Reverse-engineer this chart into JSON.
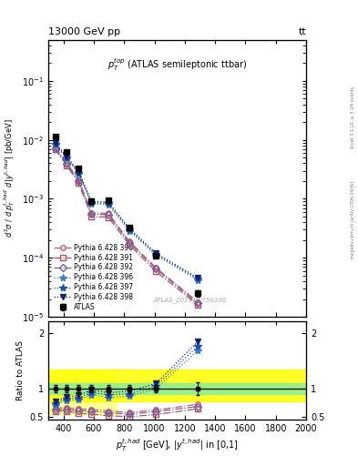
{
  "title_top": "13000 GeV pp",
  "title_right": "tt",
  "annotation": "$p_T^{top}$ (ATLAS semileptonic ttbar)",
  "watermark": "ATLAS_2019_I1750330",
  "right_label": "mcplots.cern.ch [arXiv:1306.3436]",
  "right_label2": "Rivet 3.1.10, ≥ 3.1M events",
  "ylabel_main": "$d^2\\sigma$ / $d\\,p_T^{t,had}$ $d\\,|y^{t,had}|$ [pb/GeV]",
  "ylabel_ratio": "Ratio to ATLAS",
  "xlabel": "$p_T^{t,had}$ [GeV], $|y^{t,had}|$ in [0,1]",
  "ylim_main": [
    1e-05,
    0.5
  ],
  "ylim_ratio": [
    0.45,
    2.2
  ],
  "xlim": [
    300,
    2000
  ],
  "atlas_x": [
    345,
    420,
    500,
    585,
    695,
    835,
    1010,
    1285
  ],
  "atlas_y": [
    0.0115,
    0.0062,
    0.0033,
    0.00092,
    0.00095,
    0.00033,
    0.00011,
    2.5e-05
  ],
  "atlas_yerr": [
    0.0008,
    0.0004,
    0.0002,
    6e-05,
    6e-05,
    2e-05,
    8e-06,
    3e-06
  ],
  "series": [
    {
      "label": "Pythia 6.428 390",
      "color": "#c06070",
      "linestyle": "-.",
      "marker": "o",
      "fillstyle": "none",
      "x": [
        345,
        420,
        500,
        585,
        695,
        835,
        1010,
        1285
      ],
      "y": [
        0.0075,
        0.0041,
        0.0021,
        0.00058,
        0.00057,
        0.00019,
        6.8e-05,
        1.8e-05
      ]
    },
    {
      "label": "Pythia 6.428 391",
      "color": "#b05060",
      "linestyle": "-.",
      "marker": "s",
      "fillstyle": "none",
      "x": [
        345,
        420,
        500,
        585,
        695,
        835,
        1010,
        1285
      ],
      "y": [
        0.0069,
        0.0037,
        0.00185,
        0.0005,
        0.00049,
        0.000165,
        5.9e-05,
        1.6e-05
      ]
    },
    {
      "label": "Pythia 6.428 392",
      "color": "#7060a0",
      "linestyle": "-.",
      "marker": "D",
      "fillstyle": "none",
      "x": [
        345,
        420,
        500,
        585,
        695,
        835,
        1010,
        1285
      ],
      "y": [
        0.0072,
        0.0039,
        0.002,
        0.00055,
        0.00054,
        0.00018,
        6.5e-05,
        1.7e-05
      ]
    },
    {
      "label": "Pythia 6.428 396",
      "color": "#4080c0",
      "linestyle": ":",
      "marker": "*",
      "fillstyle": "full",
      "x": [
        345,
        420,
        500,
        585,
        695,
        835,
        1010,
        1285
      ],
      "y": [
        0.0082,
        0.0049,
        0.00265,
        0.00082,
        0.0008,
        0.000285,
        0.00011,
        4.2e-05
      ]
    },
    {
      "label": "Pythia 6.428 397",
      "color": "#2050b0",
      "linestyle": ":",
      "marker": "*",
      "fillstyle": "full",
      "x": [
        345,
        420,
        500,
        585,
        695,
        835,
        1010,
        1285
      ],
      "y": [
        0.0085,
        0.0051,
        0.00275,
        0.00086,
        0.00084,
        0.0003,
        0.000115,
        4.4e-05
      ]
    },
    {
      "label": "Pythia 6.428 398",
      "color": "#102070",
      "linestyle": ":",
      "marker": "v",
      "fillstyle": "full",
      "x": [
        345,
        420,
        500,
        585,
        695,
        835,
        1010,
        1285
      ],
      "y": [
        0.0088,
        0.0053,
        0.0029,
        0.0009,
        0.00088,
        0.000315,
        0.00012,
        4.6e-05
      ]
    }
  ],
  "green_band_ymin": 0.9,
  "green_band_ymax": 1.1,
  "yellow_band_ymin": 0.78,
  "yellow_band_ymax": 1.35,
  "yellow_band_x1": 300,
  "yellow_band_x2": 750
}
